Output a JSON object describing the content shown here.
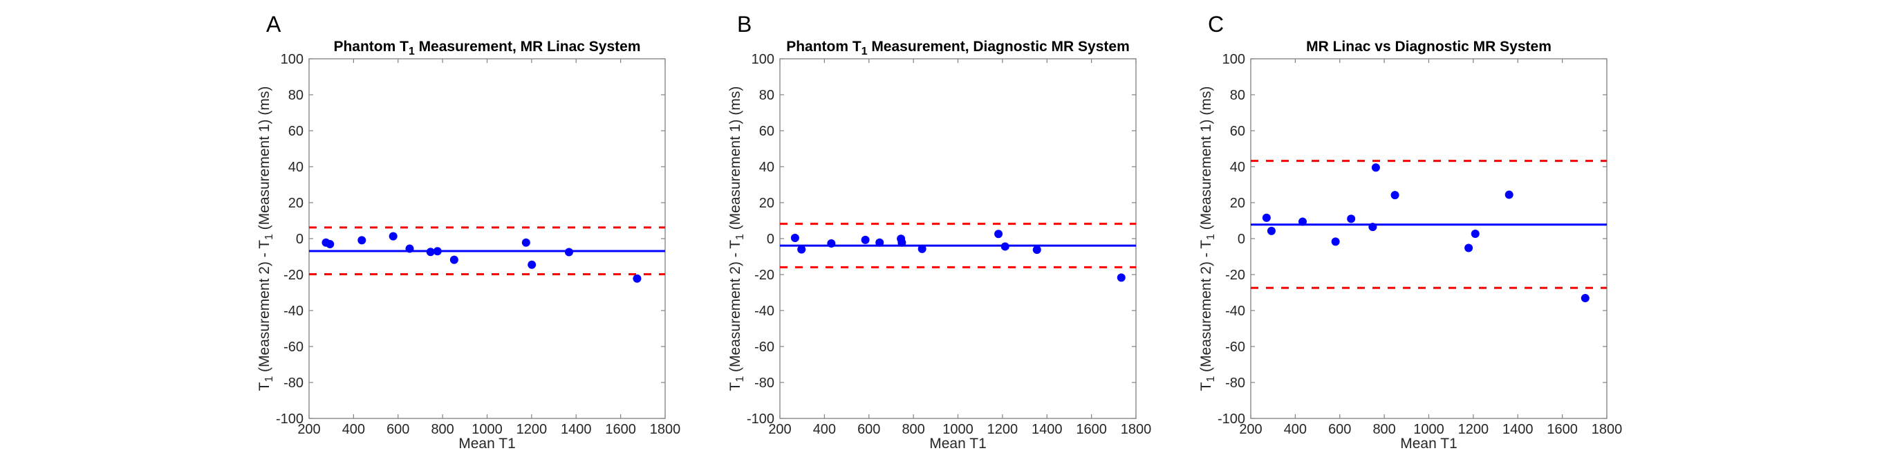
{
  "chart_data": [
    {
      "type": "scatter",
      "panel_letter": "A",
      "title_parts": [
        "Phantom T",
        "1",
        " Measurement, MR Linac System"
      ],
      "xlabel": "Mean T1",
      "ylabel_parts": [
        "T",
        "1",
        " (Measurement 2) - T",
        "1",
        " (Measurement 1) (ms)"
      ],
      "xlim": [
        200,
        1800
      ],
      "ylim": [
        -100,
        100
      ],
      "xticks": [
        200,
        400,
        600,
        800,
        1000,
        1200,
        1400,
        1600,
        1800
      ],
      "yticks": [
        -100,
        -80,
        -60,
        -40,
        -20,
        0,
        20,
        40,
        60,
        80,
        100
      ],
      "points": [
        [
          276,
          -2.2
        ],
        [
          294,
          -3.1
        ],
        [
          437,
          -0.9
        ],
        [
          578,
          1.3
        ],
        [
          652,
          -5.6
        ],
        [
          746,
          -7.4
        ],
        [
          777,
          -7.0
        ],
        [
          852,
          -11.8
        ],
        [
          1175,
          -2.2
        ],
        [
          1201,
          -14.5
        ],
        [
          1368,
          -7.5
        ],
        [
          1674,
          -22.2
        ]
      ],
      "mean_diff": -6.9,
      "upper_loa": 6.2,
      "lower_loa": -19.8
    },
    {
      "type": "scatter",
      "panel_letter": "B",
      "title_parts": [
        "Phantom T",
        "1",
        " Measurement, Diagnostic MR System"
      ],
      "xlabel": "Mean T1",
      "ylabel_parts": [
        "T",
        "1",
        " (Measurement 2) - T",
        "1",
        " (Measurement 1) (ms)"
      ],
      "xlim": [
        200,
        1800
      ],
      "ylim": [
        -100,
        100
      ],
      "xticks": [
        200,
        400,
        600,
        800,
        1000,
        1200,
        1400,
        1600,
        1800
      ],
      "yticks": [
        -100,
        -80,
        -60,
        -40,
        -20,
        0,
        20,
        40,
        60,
        80,
        100
      ],
      "points": [
        [
          268,
          0.4
        ],
        [
          297,
          -6.0
        ],
        [
          431,
          -2.7
        ],
        [
          584,
          -0.7
        ],
        [
          648,
          -2.2
        ],
        [
          744,
          -0.1
        ],
        [
          748,
          -2.2
        ],
        [
          839,
          -5.7
        ],
        [
          1182,
          2.6
        ],
        [
          1212,
          -4.4
        ],
        [
          1355,
          -6.2
        ],
        [
          1734,
          -21.7
        ]
      ],
      "mean_diff": -3.9,
      "upper_loa": 8.2,
      "lower_loa": -15.9
    },
    {
      "type": "scatter",
      "panel_letter": "C",
      "title_parts": [
        "MR Linac vs Diagnostic MR System",
        "",
        ""
      ],
      "xlabel": "Mean T1",
      "ylabel_parts": [
        "T",
        "1",
        " (Measurement 2) - T",
        "1",
        " (Measurement 1) (ms)"
      ],
      "xlim": [
        200,
        1800
      ],
      "ylim": [
        -100,
        100
      ],
      "xticks": [
        200,
        400,
        600,
        800,
        1000,
        1200,
        1400,
        1600,
        1800
      ],
      "yticks": [
        -100,
        -80,
        -60,
        -40,
        -20,
        0,
        20,
        40,
        60,
        80,
        100
      ],
      "points": [
        [
          271,
          11.6
        ],
        [
          293,
          4.3
        ],
        [
          433,
          9.4
        ],
        [
          581,
          -1.7
        ],
        [
          651,
          11.0
        ],
        [
          748,
          6.5
        ],
        [
          762,
          39.5
        ],
        [
          848,
          24.2
        ],
        [
          1179,
          -5.2
        ],
        [
          1209,
          2.7
        ],
        [
          1361,
          24.4
        ],
        [
          1703,
          -33.1
        ]
      ],
      "mean_diff": 7.8,
      "upper_loa": 43.2,
      "lower_loa": -27.4
    }
  ],
  "colors": {
    "points": "#0000ff",
    "mean_line": "#0000ff",
    "loa_lines": "#ff0000",
    "axis": "#808080",
    "text": "#262626"
  }
}
